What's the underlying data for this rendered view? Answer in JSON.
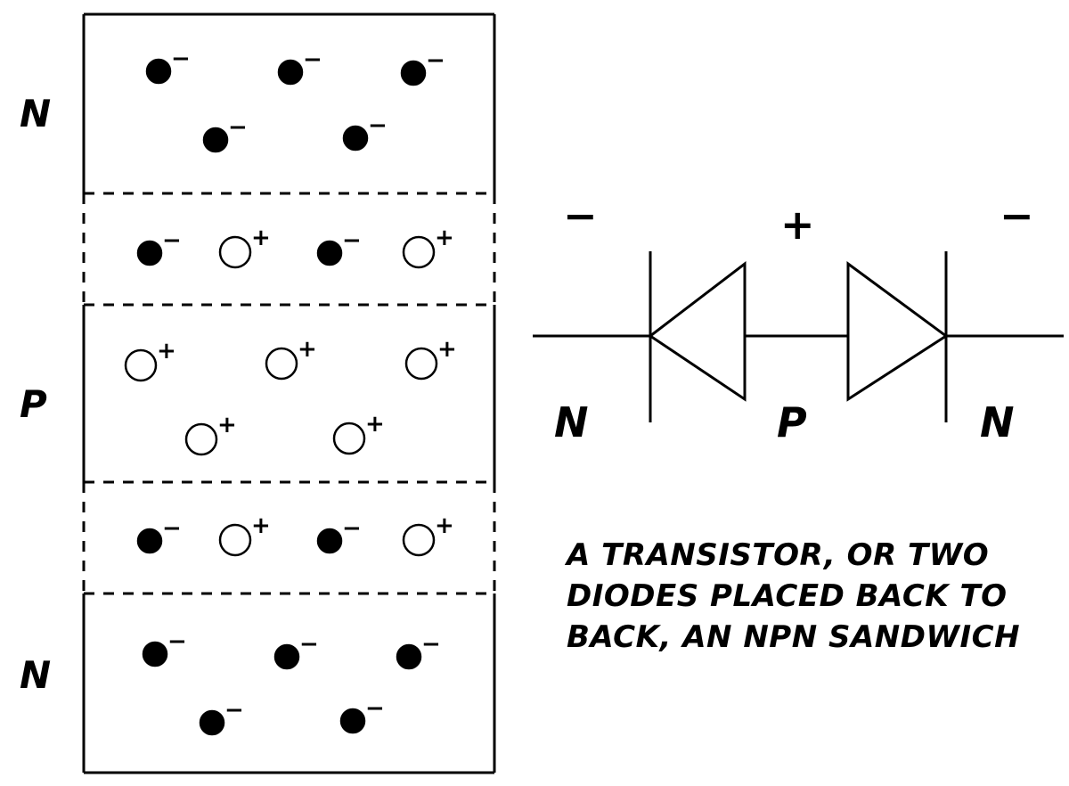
{
  "semiconductor": {
    "layer_labels": [
      "N",
      "P",
      "N"
    ],
    "electron_sign": "−",
    "hole_sign": "+"
  },
  "diode_symbol": {
    "polarity_labels": [
      "−",
      "+",
      "−"
    ],
    "region_labels": [
      "N",
      "P",
      "N"
    ]
  },
  "caption_lines": [
    "A TRANSISTOR, OR TWO",
    "DIODES PLACED BACK TO",
    "BACK, AN NPN SANDWICH"
  ]
}
